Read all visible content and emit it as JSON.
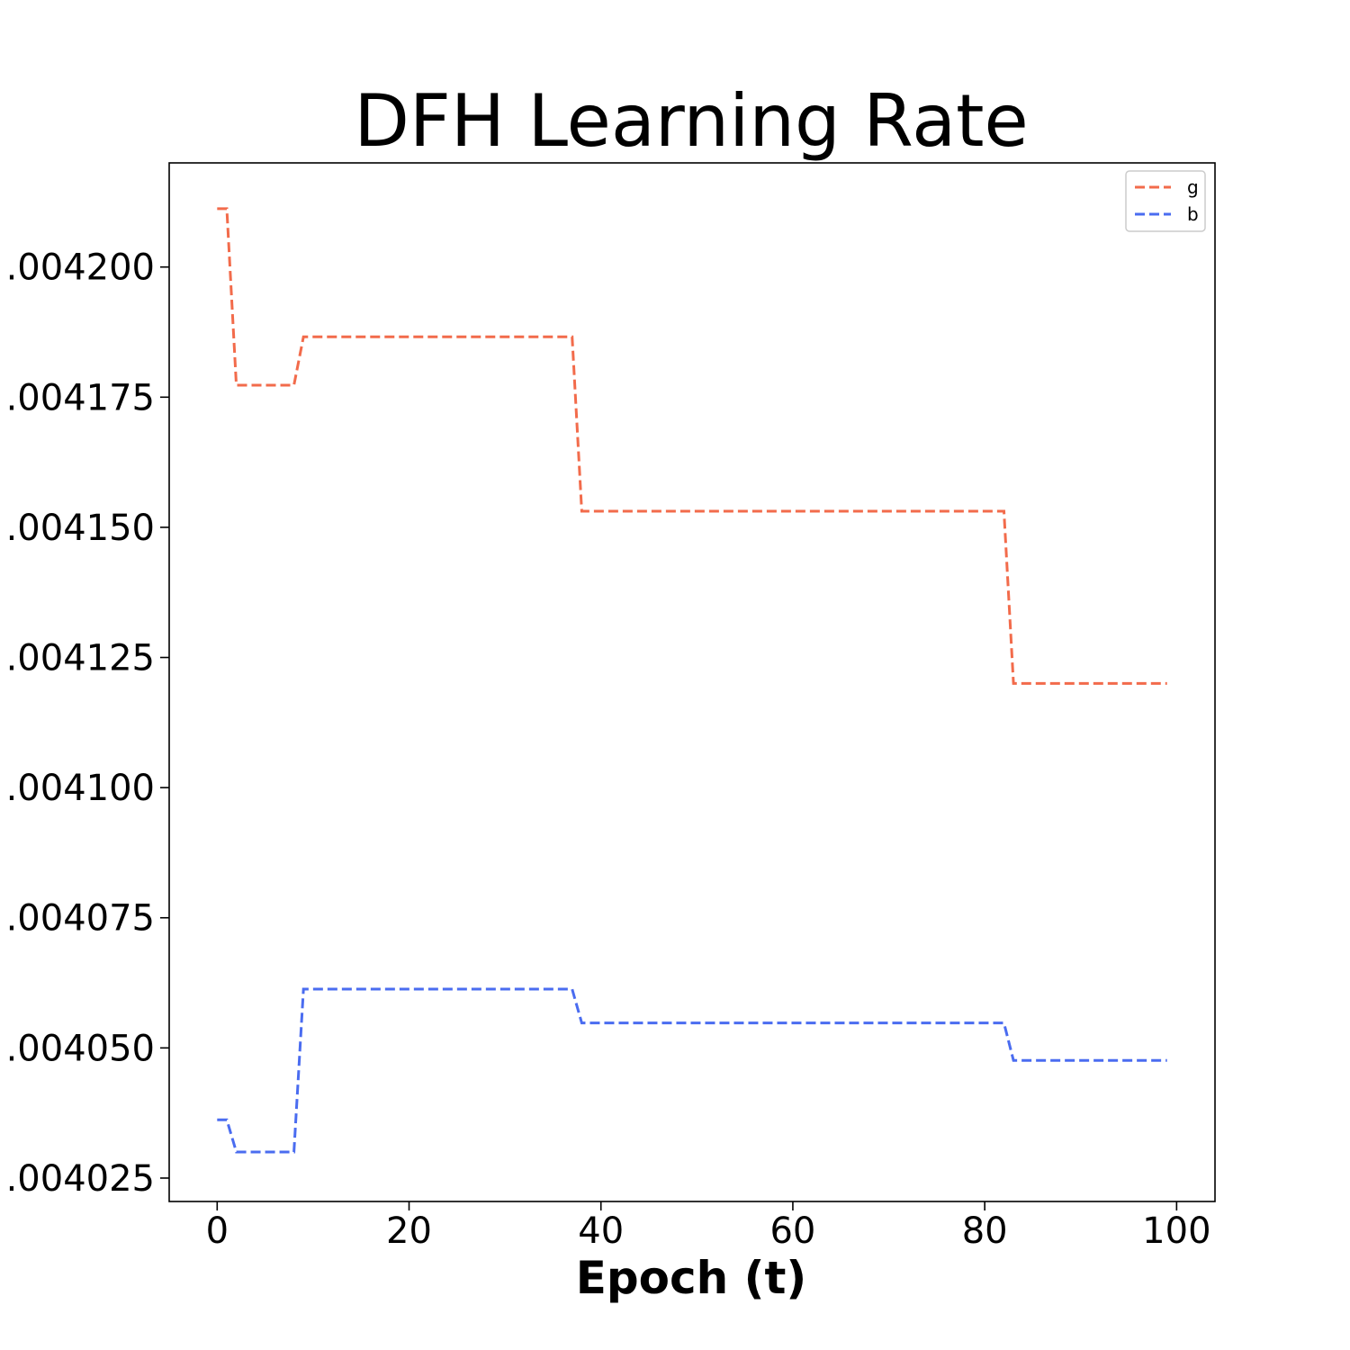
{
  "chart_data": {
    "type": "line",
    "title": "DFH Learning Rate",
    "xlabel": "Epoch (t)",
    "ylabel": "",
    "xlim": [
      -5,
      104
    ],
    "ylim": [
      0.0040205,
      0.00422
    ],
    "x_ticks": [
      0,
      20,
      40,
      60,
      80,
      100
    ],
    "x_tick_labels": [
      "0",
      "20",
      "40",
      "60",
      "80",
      "100"
    ],
    "y_ticks": [
      0.004025,
      0.00405,
      0.004075,
      0.0041,
      0.004125,
      0.00415,
      0.004175,
      0.0042
    ],
    "y_tick_labels": [
      ".004025",
      ".004050",
      ".004075",
      ".004100",
      ".004125",
      ".004150",
      ".004175",
      ".004200"
    ],
    "grid": false,
    "legend_position": "top-right",
    "line_style": "dashed",
    "series": [
      {
        "name": "g",
        "color": "#f26b4b",
        "points": [
          [
            0,
            0.0042112
          ],
          [
            1,
            0.0042112
          ],
          [
            2,
            0.0041773
          ],
          [
            8,
            0.0041773
          ],
          [
            9,
            0.0041866
          ],
          [
            37,
            0.0041866
          ],
          [
            38,
            0.0041531
          ],
          [
            82,
            0.0041531
          ],
          [
            83,
            0.00412
          ],
          [
            99,
            0.00412
          ]
        ]
      },
      {
        "name": "b",
        "color": "#4a6cf0",
        "points": [
          [
            0,
            0.0040362
          ],
          [
            1,
            0.0040362
          ],
          [
            2,
            0.00403
          ],
          [
            8,
            0.00403
          ],
          [
            9,
            0.0040613
          ],
          [
            37,
            0.0040613
          ],
          [
            38,
            0.0040548
          ],
          [
            82,
            0.0040548
          ],
          [
            83,
            0.0040476
          ],
          [
            99,
            0.0040476
          ]
        ]
      }
    ]
  }
}
